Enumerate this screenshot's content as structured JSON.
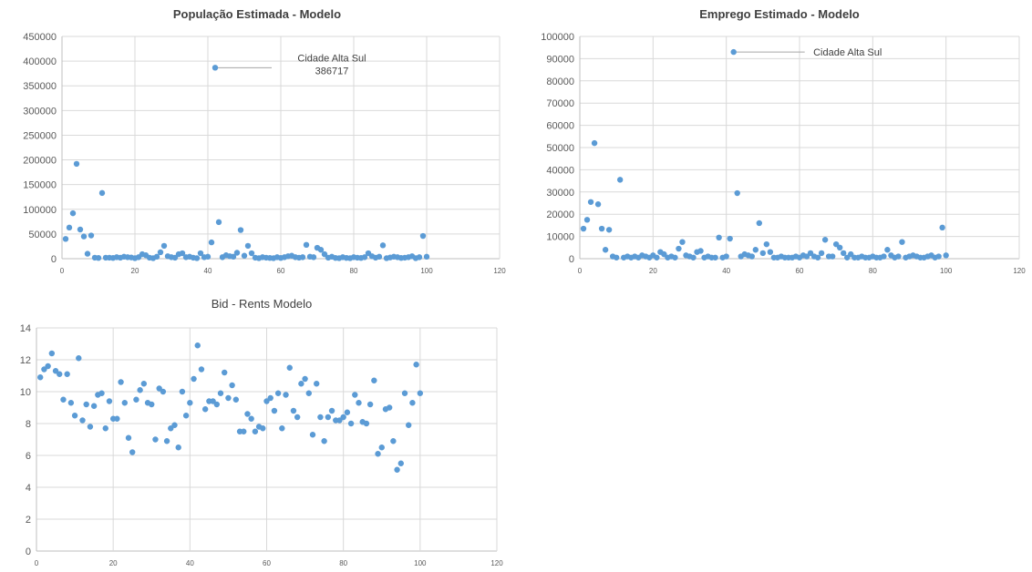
{
  "colors": {
    "marker": "#5B9BD5",
    "grid": "#d9d9d9"
  },
  "chart_data": [
    {
      "id": "pop",
      "type": "scatter",
      "title": "População Estimada - Modelo",
      "title_bold": true,
      "xlim": [
        0,
        120
      ],
      "xticks": [
        0,
        20,
        40,
        60,
        80,
        100,
        120
      ],
      "ylim": [
        0,
        450000
      ],
      "yticks": [
        0,
        50000,
        100000,
        150000,
        200000,
        250000,
        300000,
        350000,
        400000,
        450000
      ],
      "points": [
        [
          1,
          40000
        ],
        [
          2,
          63000
        ],
        [
          3,
          92000
        ],
        [
          4,
          192000
        ],
        [
          5,
          59000
        ],
        [
          6,
          45000
        ],
        [
          7,
          10000
        ],
        [
          8,
          47000
        ],
        [
          9,
          2000
        ],
        [
          10,
          1500
        ],
        [
          11,
          133000
        ],
        [
          12,
          2000
        ],
        [
          13,
          2000
        ],
        [
          14,
          1500
        ],
        [
          15,
          3000
        ],
        [
          16,
          2000
        ],
        [
          17,
          4000
        ],
        [
          18,
          3000
        ],
        [
          19,
          2500
        ],
        [
          20,
          1000
        ],
        [
          21,
          3000
        ],
        [
          22,
          9000
        ],
        [
          23,
          7000
        ],
        [
          24,
          2000
        ],
        [
          25,
          1000
        ],
        [
          26,
          4000
        ],
        [
          27,
          13000
        ],
        [
          28,
          26000
        ],
        [
          29,
          5000
        ],
        [
          30,
          3000
        ],
        [
          31,
          2000
        ],
        [
          32,
          9000
        ],
        [
          33,
          11000
        ],
        [
          34,
          3000
        ],
        [
          35,
          4000
        ],
        [
          36,
          2000
        ],
        [
          37,
          1000
        ],
        [
          38,
          11000
        ],
        [
          39,
          3000
        ],
        [
          40,
          4000
        ],
        [
          41,
          33000
        ],
        [
          42,
          386717
        ],
        [
          43,
          74000
        ],
        [
          44,
          3000
        ],
        [
          45,
          7000
        ],
        [
          46,
          5000
        ],
        [
          47,
          4000
        ],
        [
          48,
          12000
        ],
        [
          49,
          58000
        ],
        [
          50,
          6000
        ],
        [
          51,
          26000
        ],
        [
          52,
          11000
        ],
        [
          53,
          2000
        ],
        [
          54,
          1000
        ],
        [
          55,
          3000
        ],
        [
          56,
          2000
        ],
        [
          57,
          1500
        ],
        [
          58,
          1000
        ],
        [
          59,
          3000
        ],
        [
          60,
          1500
        ],
        [
          61,
          3000
        ],
        [
          62,
          5000
        ],
        [
          63,
          6000
        ],
        [
          64,
          3000
        ],
        [
          65,
          2000
        ],
        [
          66,
          3000
        ],
        [
          67,
          28000
        ],
        [
          68,
          4000
        ],
        [
          69,
          3000
        ],
        [
          70,
          22000
        ],
        [
          71,
          18000
        ],
        [
          72,
          9000
        ],
        [
          73,
          2000
        ],
        [
          74,
          4000
        ],
        [
          75,
          1500
        ],
        [
          76,
          1000
        ],
        [
          77,
          3000
        ],
        [
          78,
          1500
        ],
        [
          79,
          1000
        ],
        [
          80,
          3000
        ],
        [
          81,
          2000
        ],
        [
          82,
          1500
        ],
        [
          83,
          3000
        ],
        [
          84,
          11000
        ],
        [
          85,
          5000
        ],
        [
          86,
          2000
        ],
        [
          87,
          4000
        ],
        [
          88,
          27000
        ],
        [
          89,
          1000
        ],
        [
          90,
          2500
        ],
        [
          91,
          4000
        ],
        [
          92,
          3000
        ],
        [
          93,
          1500
        ],
        [
          94,
          2000
        ],
        [
          95,
          3000
        ],
        [
          96,
          5000
        ],
        [
          97,
          1000
        ],
        [
          98,
          3000
        ],
        [
          99,
          46000
        ],
        [
          100,
          4000
        ]
      ],
      "annotation": {
        "line1": "Cidade Alta Sul",
        "line2": "386717",
        "point_x": 42,
        "point_y": 386717
      }
    },
    {
      "id": "emp",
      "type": "scatter",
      "title": "Emprego Estimado - Modelo",
      "title_bold": true,
      "xlim": [
        0,
        120
      ],
      "xticks": [
        0,
        20,
        40,
        60,
        80,
        100,
        120
      ],
      "ylim": [
        0,
        100000
      ],
      "yticks": [
        0,
        10000,
        20000,
        30000,
        40000,
        50000,
        60000,
        70000,
        80000,
        90000,
        100000
      ],
      "points": [
        [
          1,
          13500
        ],
        [
          2,
          17500
        ],
        [
          3,
          25500
        ],
        [
          4,
          52000
        ],
        [
          5,
          24500
        ],
        [
          6,
          13500
        ],
        [
          7,
          4000
        ],
        [
          8,
          13000
        ],
        [
          9,
          1000
        ],
        [
          10,
          500
        ],
        [
          11,
          35500
        ],
        [
          12,
          500
        ],
        [
          13,
          1000
        ],
        [
          14,
          500
        ],
        [
          15,
          1000
        ],
        [
          16,
          500
        ],
        [
          17,
          1500
        ],
        [
          18,
          1000
        ],
        [
          19,
          500
        ],
        [
          20,
          1500
        ],
        [
          21,
          500
        ],
        [
          22,
          3000
        ],
        [
          23,
          2000
        ],
        [
          24,
          500
        ],
        [
          25,
          1000
        ],
        [
          26,
          500
        ],
        [
          27,
          4500
        ],
        [
          28,
          7500
        ],
        [
          29,
          1500
        ],
        [
          30,
          1000
        ],
        [
          31,
          500
        ],
        [
          32,
          3000
        ],
        [
          33,
          3500
        ],
        [
          34,
          500
        ],
        [
          35,
          1000
        ],
        [
          36,
          500
        ],
        [
          37,
          500
        ],
        [
          38,
          9500
        ],
        [
          39,
          500
        ],
        [
          40,
          1000
        ],
        [
          41,
          9000
        ],
        [
          42,
          93000
        ],
        [
          43,
          29500
        ],
        [
          44,
          1000
        ],
        [
          45,
          2000
        ],
        [
          46,
          1500
        ],
        [
          47,
          1000
        ],
        [
          48,
          4000
        ],
        [
          49,
          16000
        ],
        [
          50,
          2500
        ],
        [
          51,
          6500
        ],
        [
          52,
          3000
        ],
        [
          53,
          500
        ],
        [
          54,
          500
        ],
        [
          55,
          1000
        ],
        [
          56,
          500
        ],
        [
          57,
          500
        ],
        [
          58,
          500
        ],
        [
          59,
          1000
        ],
        [
          60,
          500
        ],
        [
          61,
          1500
        ],
        [
          62,
          1000
        ],
        [
          63,
          2500
        ],
        [
          64,
          1000
        ],
        [
          65,
          500
        ],
        [
          66,
          2500
        ],
        [
          67,
          8500
        ],
        [
          68,
          1000
        ],
        [
          69,
          1000
        ],
        [
          70,
          6500
        ],
        [
          71,
          5000
        ],
        [
          72,
          2500
        ],
        [
          73,
          500
        ],
        [
          74,
          2000
        ],
        [
          75,
          500
        ],
        [
          76,
          500
        ],
        [
          77,
          1000
        ],
        [
          78,
          500
        ],
        [
          79,
          500
        ],
        [
          80,
          1000
        ],
        [
          81,
          500
        ],
        [
          82,
          500
        ],
        [
          83,
          1000
        ],
        [
          84,
          4000
        ],
        [
          85,
          1500
        ],
        [
          86,
          500
        ],
        [
          87,
          1000
        ],
        [
          88,
          7500
        ],
        [
          89,
          500
        ],
        [
          90,
          1000
        ],
        [
          91,
          1500
        ],
        [
          92,
          1000
        ],
        [
          93,
          500
        ],
        [
          94,
          500
        ],
        [
          95,
          1000
        ],
        [
          96,
          1500
        ],
        [
          97,
          500
        ],
        [
          98,
          1000
        ],
        [
          99,
          14000
        ],
        [
          100,
          1500
        ]
      ],
      "annotation": {
        "line1": "Cidade Alta Sul",
        "point_x": 42,
        "point_y": 93000
      }
    },
    {
      "id": "bid",
      "type": "scatter",
      "title": "Bid - Rents Modelo",
      "title_bold": false,
      "xlim": [
        0,
        120
      ],
      "xticks": [
        0,
        20,
        40,
        60,
        80,
        100,
        120
      ],
      "ylim": [
        0,
        14
      ],
      "yticks": [
        0,
        2,
        4,
        6,
        8,
        10,
        12,
        14
      ],
      "points": [
        [
          1,
          10.9
        ],
        [
          2,
          11.4
        ],
        [
          3,
          11.6
        ],
        [
          4,
          12.4
        ],
        [
          5,
          11.3
        ],
        [
          6,
          11.1
        ],
        [
          7,
          9.5
        ],
        [
          8,
          11.1
        ],
        [
          9,
          9.3
        ],
        [
          10,
          8.5
        ],
        [
          11,
          12.1
        ],
        [
          12,
          8.2
        ],
        [
          13,
          9.2
        ],
        [
          14,
          7.8
        ],
        [
          15,
          9.1
        ],
        [
          16,
          9.8
        ],
        [
          17,
          9.9
        ],
        [
          18,
          7.7
        ],
        [
          19,
          9.4
        ],
        [
          20,
          8.3
        ],
        [
          21,
          8.3
        ],
        [
          22,
          10.6
        ],
        [
          23,
          9.3
        ],
        [
          24,
          7.1
        ],
        [
          25,
          6.2
        ],
        [
          26,
          9.5
        ],
        [
          27,
          10.1
        ],
        [
          28,
          10.5
        ],
        [
          29,
          9.3
        ],
        [
          30,
          9.2
        ],
        [
          31,
          7.0
        ],
        [
          32,
          10.2
        ],
        [
          33,
          10.0
        ],
        [
          34,
          6.9
        ],
        [
          35,
          7.7
        ],
        [
          36,
          7.9
        ],
        [
          37,
          6.5
        ],
        [
          38,
          10.0
        ],
        [
          39,
          8.5
        ],
        [
          40,
          9.3
        ],
        [
          41,
          10.8
        ],
        [
          42,
          12.9
        ],
        [
          43,
          11.4
        ],
        [
          44,
          8.9
        ],
        [
          45,
          9.4
        ],
        [
          46,
          9.4
        ],
        [
          47,
          9.2
        ],
        [
          48,
          9.9
        ],
        [
          49,
          11.2
        ],
        [
          50,
          9.6
        ],
        [
          51,
          10.4
        ],
        [
          52,
          9.5
        ],
        [
          53,
          7.5
        ],
        [
          54,
          7.5
        ],
        [
          55,
          8.6
        ],
        [
          56,
          8.3
        ],
        [
          57,
          7.5
        ],
        [
          58,
          7.8
        ],
        [
          59,
          7.7
        ],
        [
          60,
          9.4
        ],
        [
          61,
          9.6
        ],
        [
          62,
          8.8
        ],
        [
          63,
          9.9
        ],
        [
          64,
          7.7
        ],
        [
          65,
          9.8
        ],
        [
          66,
          11.5
        ],
        [
          67,
          8.8
        ],
        [
          68,
          8.4
        ],
        [
          69,
          10.5
        ],
        [
          70,
          10.8
        ],
        [
          71,
          9.9
        ],
        [
          72,
          7.3
        ],
        [
          73,
          10.5
        ],
        [
          74,
          8.4
        ],
        [
          75,
          6.9
        ],
        [
          76,
          8.4
        ],
        [
          77,
          8.8
        ],
        [
          78,
          8.2
        ],
        [
          79,
          8.2
        ],
        [
          80,
          8.4
        ],
        [
          81,
          8.7
        ],
        [
          82,
          8.0
        ],
        [
          83,
          9.8
        ],
        [
          84,
          9.3
        ],
        [
          85,
          8.1
        ],
        [
          86,
          8.0
        ],
        [
          87,
          9.2
        ],
        [
          88,
          10.7
        ],
        [
          89,
          6.1
        ],
        [
          90,
          6.5
        ],
        [
          91,
          8.9
        ],
        [
          92,
          9.0
        ],
        [
          93,
          6.9
        ],
        [
          94,
          5.1
        ],
        [
          95,
          5.5
        ],
        [
          96,
          9.9
        ],
        [
          97,
          7.9
        ],
        [
          98,
          9.3
        ],
        [
          99,
          11.7
        ],
        [
          100,
          9.9
        ]
      ]
    }
  ]
}
